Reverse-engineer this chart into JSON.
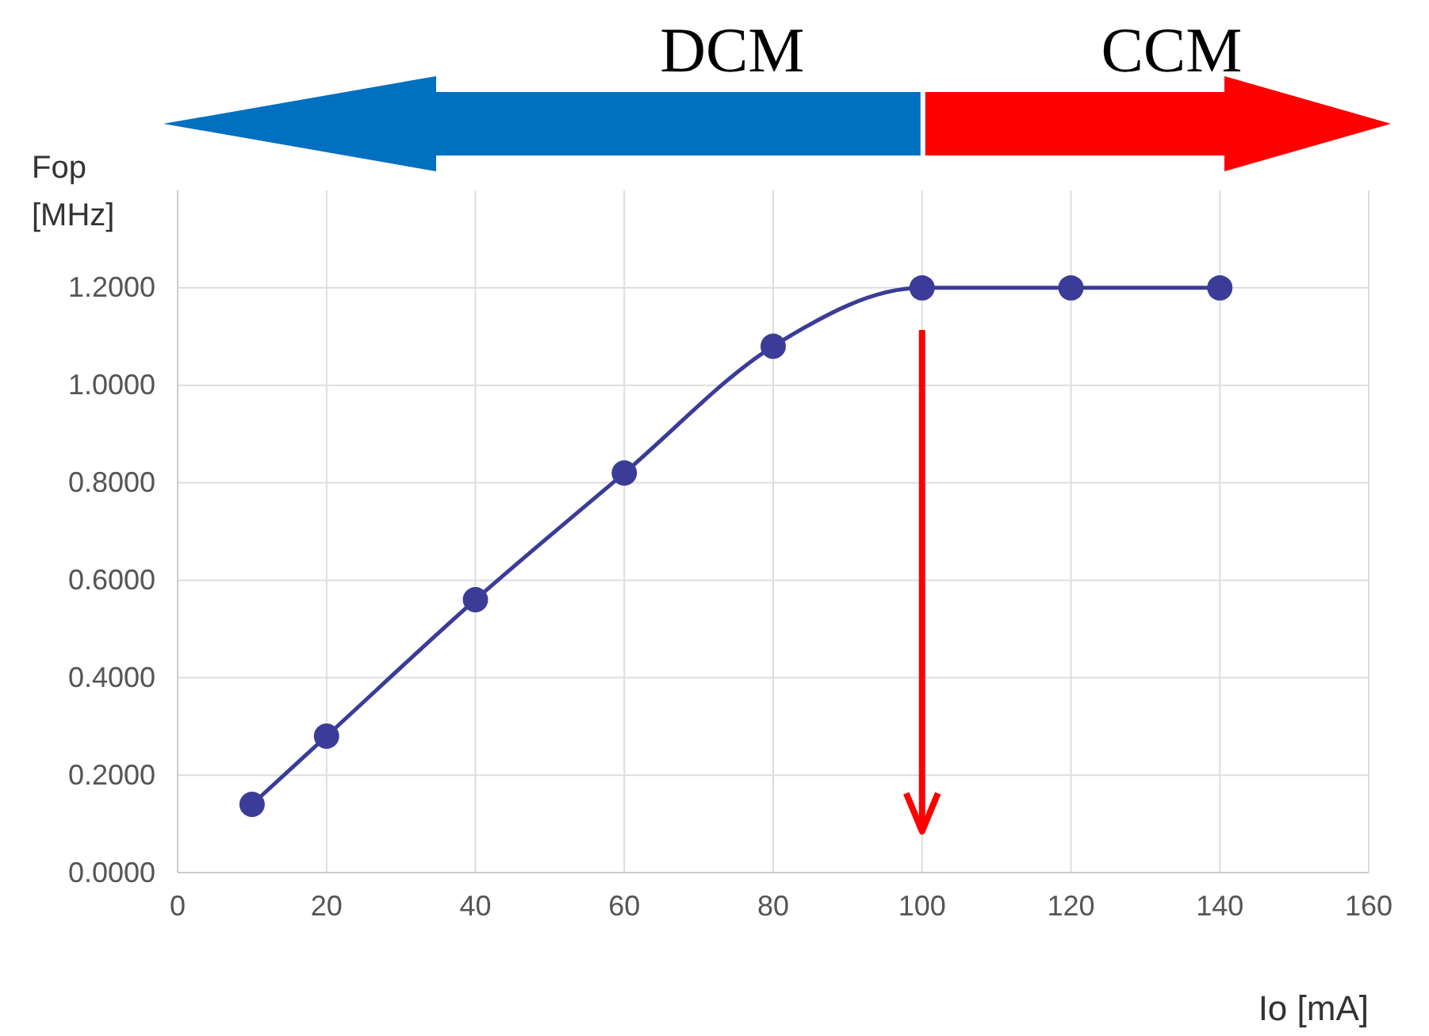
{
  "chart_data": {
    "type": "line",
    "xlabel": "Io [mA]",
    "ylabel": "Fop\n[MHz]",
    "x": [
      10,
      20,
      40,
      60,
      80,
      100,
      120,
      140
    ],
    "series": [
      {
        "color": "#3b3b98",
        "values": [
          0.14,
          0.28,
          0.56,
          0.82,
          1.08,
          1.2,
          1.2,
          1.2
        ]
      }
    ],
    "xlim": [
      0,
      160
    ],
    "xticks": [
      0,
      20,
      40,
      60,
      80,
      100,
      120,
      140,
      160
    ],
    "ylim": [
      0,
      1.4
    ],
    "yticks": [
      {
        "value": 0,
        "label": "0.0000"
      },
      {
        "value": 0.2,
        "label": "0.2000"
      },
      {
        "value": 0.4,
        "label": "0.4000"
      },
      {
        "value": 0.6,
        "label": "0.6000"
      },
      {
        "value": 0.8,
        "label": "0.8000"
      },
      {
        "value": 1,
        "label": "1.0000"
      },
      {
        "value": 1.2,
        "label": "1.2000"
      }
    ],
    "grid": true,
    "marker": "circle",
    "line_style": "solid",
    "ref_lines": [
      {
        "axis": "x",
        "value": 100,
        "color": "#ff0000"
      }
    ],
    "annotations": [
      "DCM",
      "CCM"
    ]
  }
}
